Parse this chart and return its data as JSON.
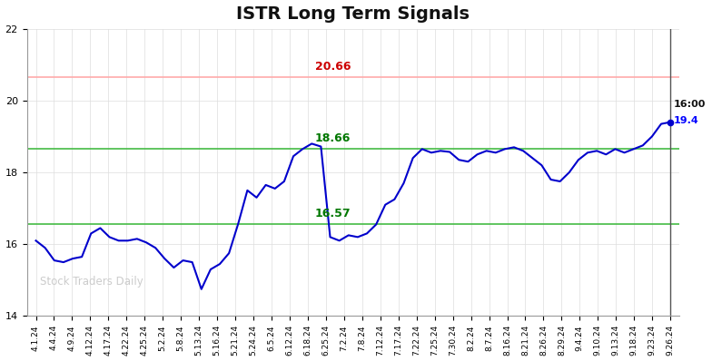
{
  "title": "ISTR Long Term Signals",
  "title_fontsize": 14,
  "title_fontweight": "bold",
  "watermark": "Stock Traders Daily",
  "ylim": [
    14,
    22
  ],
  "yticks": [
    14,
    16,
    18,
    20,
    22
  ],
  "background_color": "#ffffff",
  "line_color": "#0000cc",
  "line_width": 1.5,
  "hline_red": 20.66,
  "hline_red_color": "#ffaaaa",
  "hline_red_label_color": "#cc0000",
  "hline_green_upper": 18.66,
  "hline_green_lower": 16.57,
  "hline_green_color": "#44bb44",
  "hline_green_label_color": "#007700",
  "annotation_time_color": "#111111",
  "annotation_price_color": "#0000ff",
  "last_price": "19.4",
  "last_label": "16:00",
  "x_labels": [
    "4.1.24",
    "4.4.24",
    "4.9.24",
    "4.12.24",
    "4.17.24",
    "4.22.24",
    "4.25.24",
    "5.2.24",
    "5.8.24",
    "5.13.24",
    "5.16.24",
    "5.21.24",
    "5.24.24",
    "6.5.24",
    "6.12.24",
    "6.18.24",
    "6.25.24",
    "7.2.24",
    "7.8.24",
    "7.12.24",
    "7.17.24",
    "7.22.24",
    "7.25.24",
    "7.30.24",
    "8.2.24",
    "8.7.24",
    "8.16.24",
    "8.21.24",
    "8.26.24",
    "8.29.24",
    "9.4.24",
    "9.10.24",
    "9.13.24",
    "9.18.24",
    "9.23.24",
    "9.26.24"
  ],
  "y_values": [
    16.1,
    15.9,
    15.55,
    15.5,
    15.6,
    15.65,
    16.3,
    16.45,
    16.2,
    16.1,
    16.1,
    16.15,
    16.05,
    15.9,
    15.6,
    15.35,
    15.55,
    15.5,
    14.75,
    15.3,
    15.45,
    15.75,
    16.57,
    17.5,
    17.3,
    17.65,
    17.55,
    17.75,
    18.45,
    18.65,
    18.8,
    18.72,
    16.2,
    16.1,
    16.25,
    16.2,
    16.3,
    16.55,
    17.1,
    17.25,
    17.7,
    18.4,
    18.65,
    18.55,
    18.6,
    18.57,
    18.35,
    18.3,
    18.5,
    18.6,
    18.55,
    18.65,
    18.7,
    18.6,
    18.4,
    18.2,
    17.8,
    17.75,
    18.0,
    18.35,
    18.55,
    18.6,
    18.5,
    18.65,
    18.55,
    18.65,
    18.75,
    19.0,
    19.35,
    19.4
  ]
}
